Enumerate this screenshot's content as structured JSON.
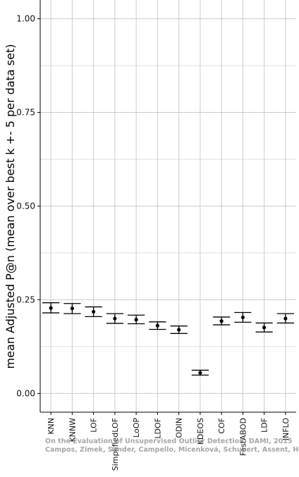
{
  "chart_data": {
    "type": "errorbar",
    "title": "",
    "xlabel": "",
    "ylabel": "mean Adjusted P@n (mean over best k +- 5 per data set)",
    "ylim": [
      -0.05,
      1.05
    ],
    "yticks": [
      0.0,
      0.25,
      0.5,
      0.75,
      1.0
    ],
    "ytick_labels": [
      "0.00",
      "0.25",
      "0.50",
      "0.75",
      "1.00"
    ],
    "grid": true,
    "legend": "none",
    "categories": [
      "KNN",
      "KNNW",
      "LOF",
      "SimplifiedLOF",
      "LoOP",
      "LDOF",
      "ODIN",
      "KDEOS",
      "COF",
      "FastABOD",
      "LDF",
      "INFLO"
    ],
    "series": [
      {
        "mean": [
          0.228,
          0.227,
          0.218,
          0.2,
          0.197,
          0.181,
          0.17,
          0.055,
          0.193,
          0.203,
          0.176,
          0.2
        ],
        "lower": [
          0.215,
          0.213,
          0.205,
          0.187,
          0.186,
          0.171,
          0.16,
          0.049,
          0.183,
          0.19,
          0.164,
          0.188
        ],
        "upper": [
          0.242,
          0.24,
          0.231,
          0.213,
          0.209,
          0.191,
          0.18,
          0.062,
          0.204,
          0.216,
          0.188,
          0.213
        ]
      }
    ],
    "colors": {
      "marks": "#000000",
      "grid": "#cccccc",
      "axis": "#000000",
      "watermark": "#8a8a8a"
    }
  },
  "watermark": {
    "line1": "On the Evaluation of Unsupervised Outlier Detection, DAMI, 2015",
    "line2": "Campos, Zimek, Sander, Campello, Micenková, Schubert, Assent, Houle"
  }
}
